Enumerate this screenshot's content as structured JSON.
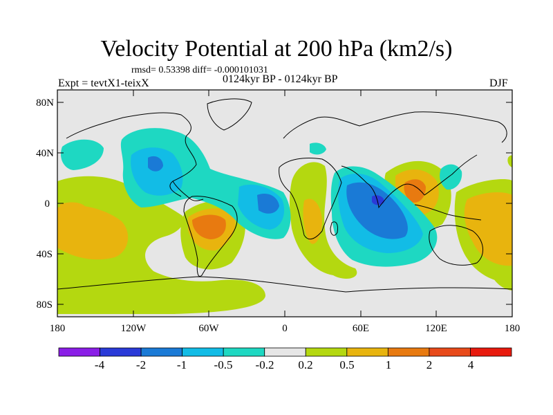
{
  "map": {
    "title": "Velocity Potential at 200 hPa (km2/s)",
    "stats": "rmsd= 0.53398 diff= -0.000101031",
    "expt": "Expt = tevtX1-teixX",
    "period": "0124kyr BP - 0124kyr BP",
    "season": "DJF",
    "lat_ticks": [
      "80N",
      "40N",
      "0",
      "40S",
      "80S"
    ],
    "lon_ticks": [
      "180",
      "120W",
      "60W",
      "0",
      "60E",
      "120E",
      "180"
    ],
    "background_color": "#e6e6e6"
  },
  "colorbar": {
    "labels": [
      "-4",
      "-2",
      "-1",
      "-0.5",
      "-0.2",
      "0.2",
      "0.5",
      "1",
      "2",
      "4"
    ],
    "colors": [
      "#8a1ee6",
      "#2a3ad8",
      "#1a7ad6",
      "#12bce6",
      "#1ed8c2",
      "#e6e6e6",
      "#b4d810",
      "#e8b40e",
      "#e87a10",
      "#e84a1a",
      "#e81a0e"
    ]
  }
}
